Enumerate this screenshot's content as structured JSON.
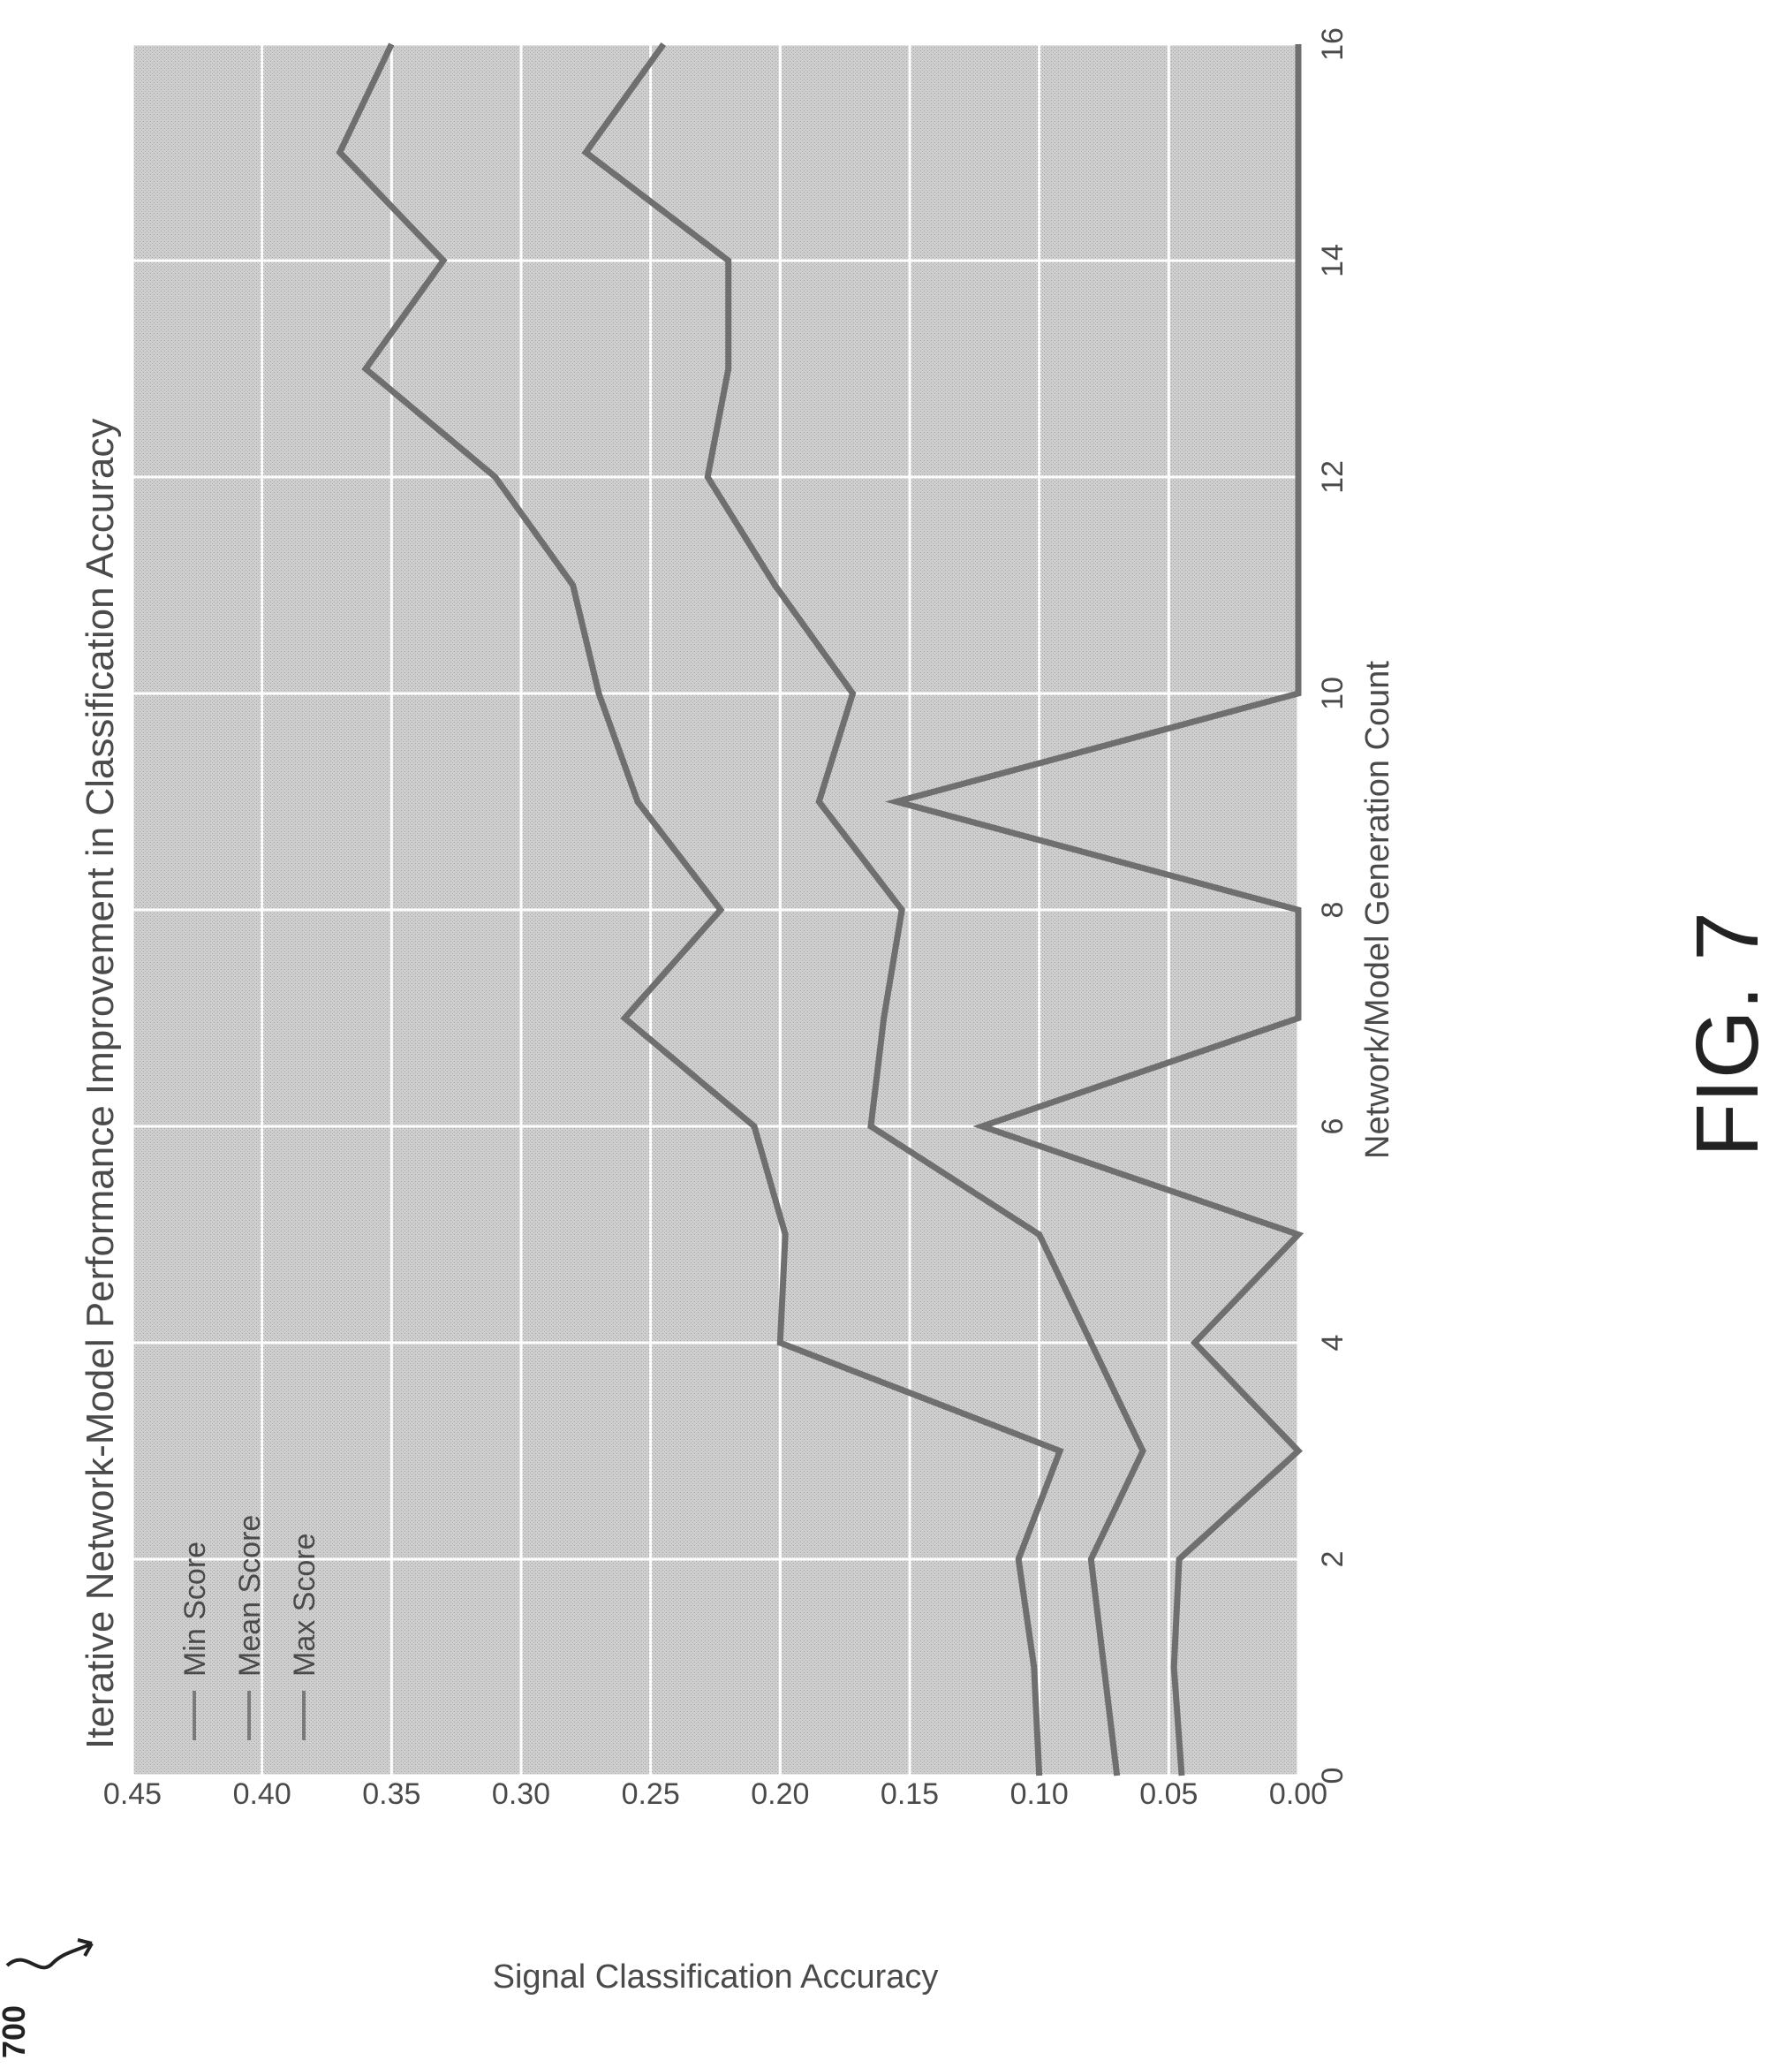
{
  "figure": {
    "ref_number": "700",
    "caption": "FIG. 7"
  },
  "chart_data": {
    "type": "line",
    "title": "Iterative Network-Model Performance Improvement in Classification Accuracy",
    "xlabel": "Network/Model Generation Count",
    "ylabel": "Signal Classification Accuracy",
    "xlim": [
      0,
      16
    ],
    "ylim": [
      0,
      0.45
    ],
    "xticks": [
      0,
      2,
      4,
      6,
      8,
      10,
      12,
      14,
      16
    ],
    "yticks": [
      0.0,
      0.05,
      0.1,
      0.15,
      0.2,
      0.25,
      0.3,
      0.35,
      0.4,
      0.45
    ],
    "ytick_labels": [
      "0.00",
      "0.05",
      "0.10",
      "0.15",
      "0.20",
      "0.25",
      "0.30",
      "0.35",
      "0.40",
      "0.45"
    ],
    "grid": true,
    "legend_position": "top-left",
    "series": [
      {
        "name": "Min Score",
        "x": [
          0,
          1,
          2,
          3,
          4,
          5,
          6,
          7,
          8,
          9,
          10,
          11,
          12,
          13,
          14,
          15,
          16
        ],
        "values": [
          0.045,
          0.048,
          0.046,
          0.0,
          0.04,
          0.0,
          0.122,
          0.0,
          0.0,
          0.155,
          0.0,
          0.0,
          0.0,
          0.0,
          0.0,
          0.0,
          0.0
        ]
      },
      {
        "name": "Mean Score",
        "x": [
          0,
          1,
          2,
          3,
          4,
          5,
          6,
          7,
          8,
          9,
          10,
          11,
          12,
          13,
          14,
          15,
          16
        ],
        "values": [
          0.07,
          0.075,
          0.08,
          0.06,
          0.08,
          0.1,
          0.165,
          0.16,
          0.153,
          0.185,
          0.172,
          0.202,
          0.228,
          0.22,
          0.22,
          0.275,
          0.245
        ]
      },
      {
        "name": "Max Score",
        "x": [
          0,
          1,
          2,
          3,
          4,
          5,
          6,
          7,
          8,
          9,
          10,
          11,
          12,
          13,
          14,
          15,
          16
        ],
        "values": [
          0.1,
          0.102,
          0.108,
          0.092,
          0.2,
          0.198,
          0.21,
          0.26,
          0.223,
          0.255,
          0.27,
          0.28,
          0.31,
          0.36,
          0.33,
          0.37,
          0.35
        ]
      }
    ]
  }
}
